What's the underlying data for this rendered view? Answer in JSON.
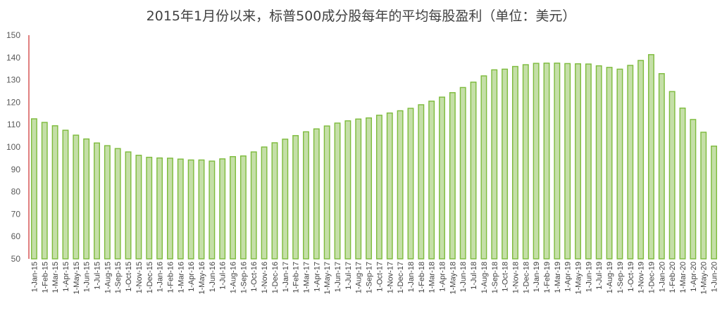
{
  "chart_data": {
    "type": "bar",
    "title": "2015年1月份以来，标普500成分股每年的平均每股盈利（单位：美元）",
    "ylim": [
      50,
      150
    ],
    "yticks": [
      50,
      60,
      70,
      80,
      90,
      100,
      110,
      120,
      130,
      140,
      150
    ],
    "grid": false,
    "categories": [
      "1-Jan-15",
      "1-Feb-15",
      "1-Mar-15",
      "1-Apr-15",
      "1-May-15",
      "1-Jun-15",
      "1-Jul-15",
      "1-Aug-15",
      "1-Sep-15",
      "1-Oct-15",
      "1-Nov-15",
      "1-Dec-15",
      "1-Jan-16",
      "1-Feb-16",
      "1-Mar-16",
      "1-Apr-16",
      "1-May-16",
      "1-Jun-16",
      "1-Jul-16",
      "1-Aug-16",
      "1-Sep-16",
      "1-Oct-16",
      "1-Nov-16",
      "1-Dec-16",
      "1-Jan-17",
      "1-Feb-17",
      "1-Mar-17",
      "1-Apr-17",
      "1-May-17",
      "1-Jun-17",
      "1-Jul-17",
      "1-Aug-17",
      "1-Sep-17",
      "1-Oct-17",
      "1-Nov-17",
      "1-Dec-17",
      "1-Jan-18",
      "1-Feb-18",
      "1-Mar-18",
      "1-Apr-18",
      "1-May-18",
      "1-Jun-18",
      "1-Jul-18",
      "1-Aug-18",
      "1-Sep-18",
      "1-Oct-18",
      "1-Nov-18",
      "1-Dec-18",
      "1-Jan-19",
      "1-Feb-19",
      "1-Mar-19",
      "1-Apr-19",
      "1-May-19",
      "1-Jun-19",
      "1-Jul-19",
      "1-Aug-19",
      "1-Sep-19",
      "1-Oct-19",
      "1-Nov-19",
      "1-Dec-19",
      "1-Jan-20",
      "1-Feb-20",
      "1-Mar-20",
      "1-Apr-20",
      "1-May-20",
      "1-Jun-20"
    ],
    "values": [
      112.6,
      111.0,
      109.5,
      107.5,
      105.3,
      103.6,
      101.8,
      100.6,
      99.3,
      97.8,
      96.3,
      95.4,
      95.1,
      95.0,
      94.6,
      94.2,
      94.2,
      93.7,
      94.7,
      95.7,
      96.0,
      97.8,
      100.0,
      101.9,
      103.5,
      105.1,
      106.8,
      108.1,
      109.4,
      110.7,
      111.7,
      112.5,
      113.0,
      114.2,
      115.2,
      116.2,
      117.3,
      118.9,
      120.5,
      122.3,
      124.3,
      126.6,
      129.0,
      131.8,
      134.5,
      134.8,
      136.0,
      136.8,
      137.4,
      137.5,
      137.5,
      137.3,
      137.2,
      137.1,
      136.3,
      135.6,
      134.8,
      136.5,
      138.7,
      141.3,
      132.8,
      124.8,
      117.4,
      112.3,
      106.6,
      100.4
    ],
    "colors": {
      "bar_fill": "#c5dfa8",
      "bar_stroke": "#7dbb3c",
      "axis_line": "#c00000"
    }
  }
}
